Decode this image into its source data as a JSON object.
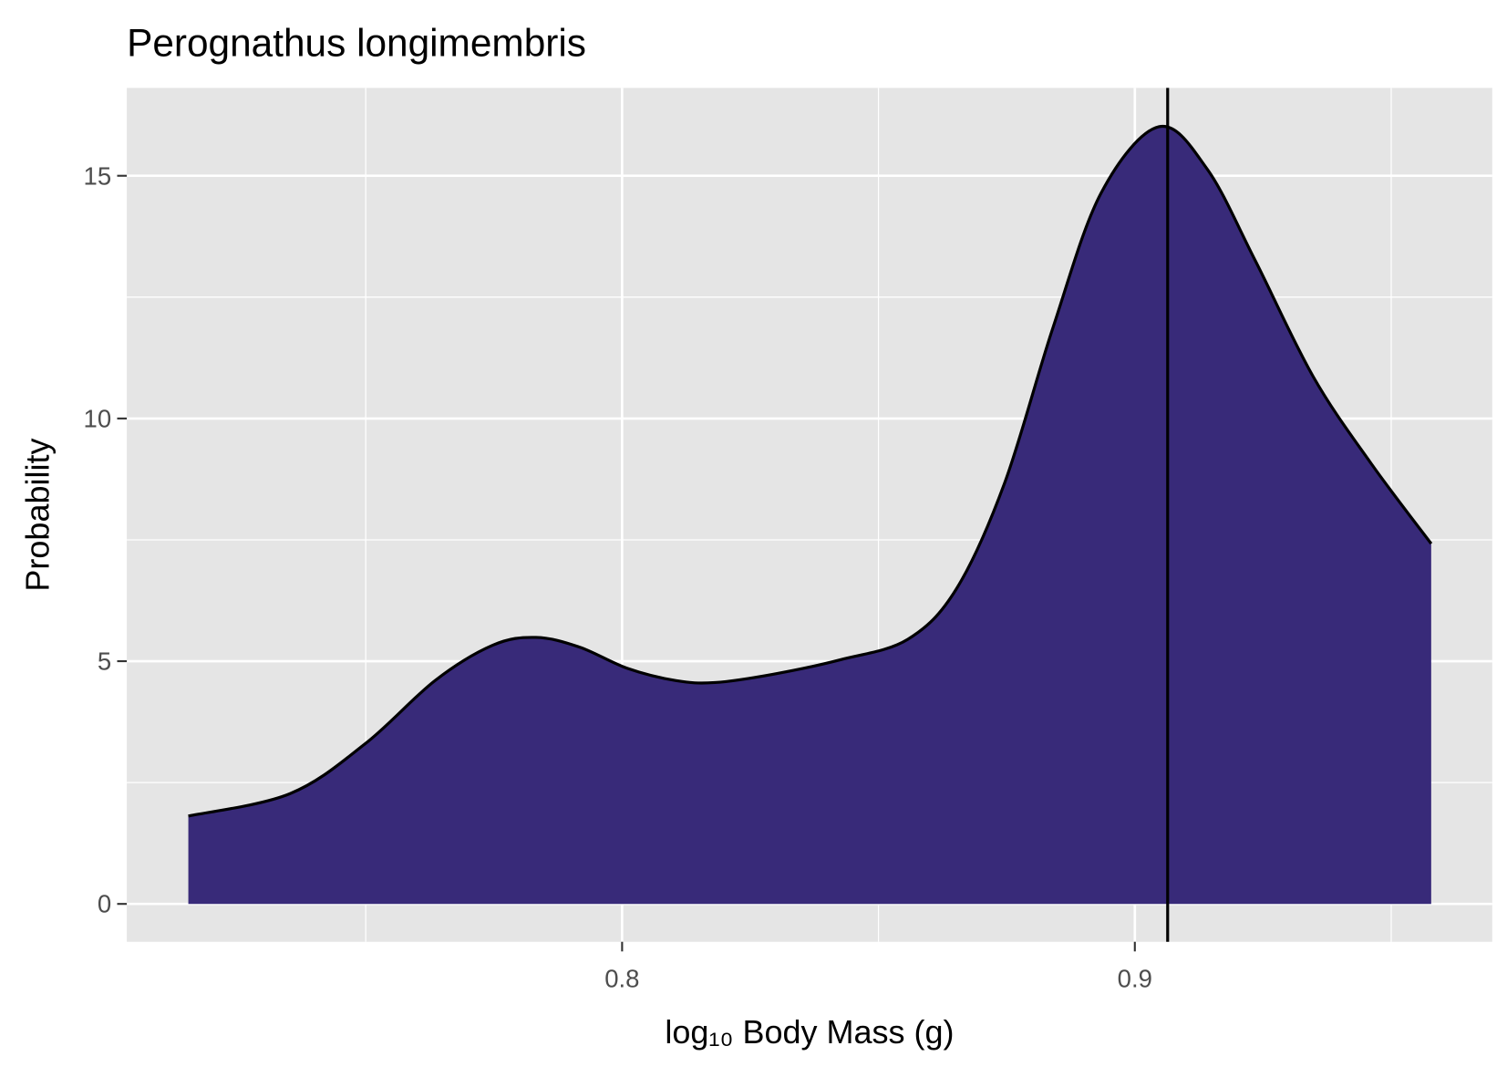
{
  "chart_data": {
    "type": "density",
    "title": "Perognathus longimembris",
    "x_label": "log₁₀ Body Mass (g)",
    "y_label": "Probability",
    "x": [
      0.7154,
      0.7352,
      0.7499,
      0.7635,
      0.7748,
      0.7832,
      0.7917,
      0.8011,
      0.8105,
      0.8181,
      0.8294,
      0.8426,
      0.8557,
      0.8652,
      0.8746,
      0.884,
      0.8934,
      0.9047,
      0.9141,
      0.9235,
      0.9348,
      0.9461,
      0.9578
    ],
    "values": [
      1.81,
      2.27,
      3.3,
      4.6,
      5.33,
      5.49,
      5.29,
      4.85,
      4.6,
      4.56,
      4.73,
      5.03,
      5.45,
      6.49,
      8.67,
      11.86,
      14.64,
      16.01,
      15.14,
      13.25,
      10.86,
      9.07,
      7.42
    ],
    "color": "#382a79",
    "vline": 0.9064,
    "xlim": [
      0.7034,
      0.9697
    ],
    "ylim": [
      -0.78,
      16.81
    ],
    "xticks": [
      0.8,
      0.9
    ],
    "yticks": [
      0,
      5,
      10,
      15
    ],
    "xminor": [
      0.75,
      0.85,
      0.95
    ],
    "yminor": [
      2.5,
      7.5,
      12.5
    ],
    "grid": true
  }
}
